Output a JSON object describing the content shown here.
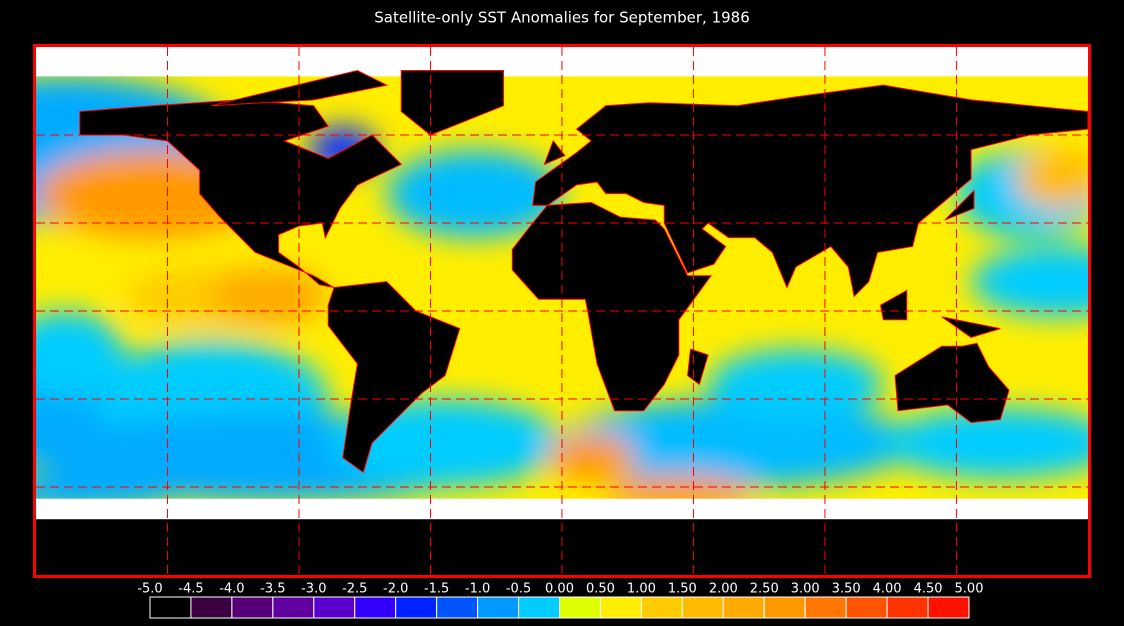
{
  "title": "Satellite-only SST Anomalies for September, 1986",
  "colorbar": {
    "ticks": [
      {
        "value": -5,
        "label": "-5.0"
      },
      {
        "value": -4.5,
        "label": "-4.5"
      },
      {
        "value": -4,
        "label": "-4.0"
      },
      {
        "value": -3.5,
        "label": "-3.5"
      },
      {
        "value": -3,
        "label": "-3.0"
      },
      {
        "value": -2.5,
        "label": "-2.5"
      },
      {
        "value": -2,
        "label": "-2.0"
      },
      {
        "value": -1.5,
        "label": "-1.5"
      },
      {
        "value": -1,
        "label": "-1.0"
      },
      {
        "value": -0.5,
        "label": "-0.5"
      },
      {
        "value": 0,
        "label": "0.00"
      },
      {
        "value": 0.5,
        "label": "0.50"
      },
      {
        "value": 1,
        "label": "1.00"
      },
      {
        "value": 1.5,
        "label": "1.50"
      },
      {
        "value": 2,
        "label": "2.00"
      },
      {
        "value": 2.5,
        "label": "2.50"
      },
      {
        "value": 3,
        "label": "3.00"
      },
      {
        "value": 3.5,
        "label": "3.50"
      },
      {
        "value": 4,
        "label": "4.00"
      },
      {
        "value": 4.5,
        "label": "4.50"
      },
      {
        "value": 5,
        "label": "5.00"
      }
    ],
    "colors": [
      "#000000",
      "#3a0040",
      "#550077",
      "#6000a0",
      "#5a00cc",
      "#3300ff",
      "#0022ff",
      "#0055ff",
      "#0099ff",
      "#00ccff",
      "#ddff00",
      "#ffee00",
      "#ffcc00",
      "#ffbb00",
      "#ffaa00",
      "#ff9900",
      "#ff7700",
      "#ff5500",
      "#ff3300",
      "#ff1100"
    ]
  }
}
